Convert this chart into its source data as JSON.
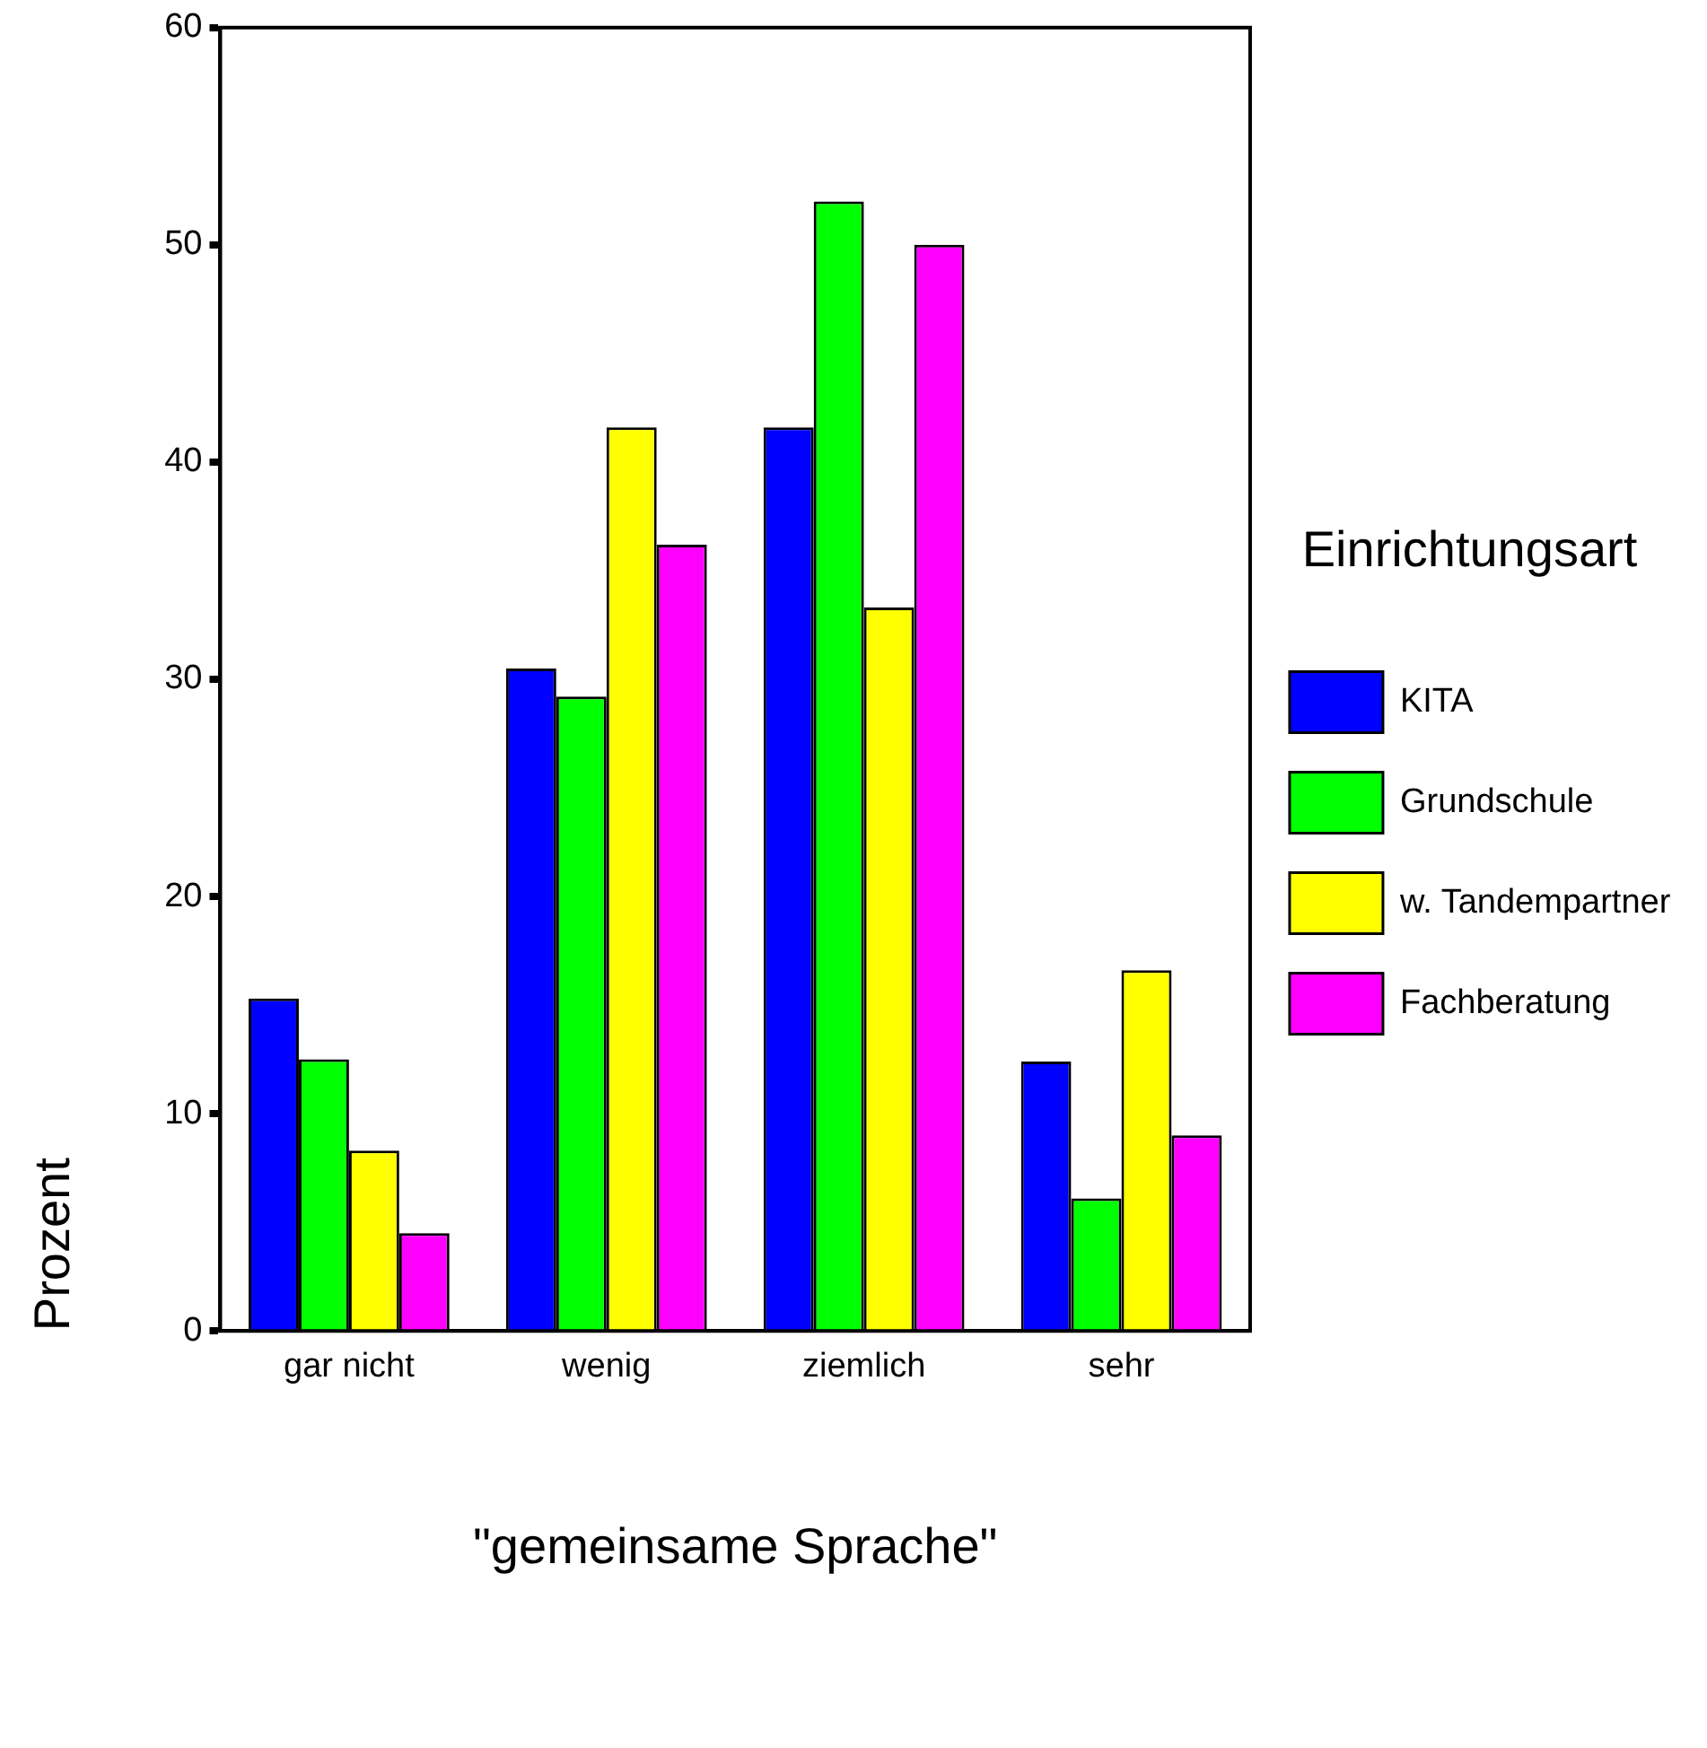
{
  "chart_data": {
    "type": "bar",
    "xlabel": "\"gemeinsame Sprache\"",
    "ylabel": "Prozent",
    "legend_title": "Einrichtungsart",
    "categories": [
      "gar nicht",
      "wenig",
      "ziemlich",
      "sehr"
    ],
    "series": [
      {
        "name": "KITA",
        "color": "#0000ff",
        "values": [
          15.3,
          30.5,
          41.6,
          12.4
        ]
      },
      {
        "name": "Grundschule",
        "color": "#00ff00",
        "values": [
          12.5,
          29.2,
          52.0,
          6.1
        ]
      },
      {
        "name": "w. Tandempartner",
        "color": "#ffff00",
        "values": [
          8.3,
          41.6,
          33.3,
          16.6
        ]
      },
      {
        "name": "Fachberatung",
        "color": "#ff00ff",
        "values": [
          4.5,
          36.2,
          50.0,
          9.0
        ]
      }
    ],
    "ylim": [
      0,
      60
    ],
    "yticks": [
      0,
      10,
      20,
      30,
      40,
      50,
      60
    ],
    "grid": false,
    "legend": "right"
  }
}
